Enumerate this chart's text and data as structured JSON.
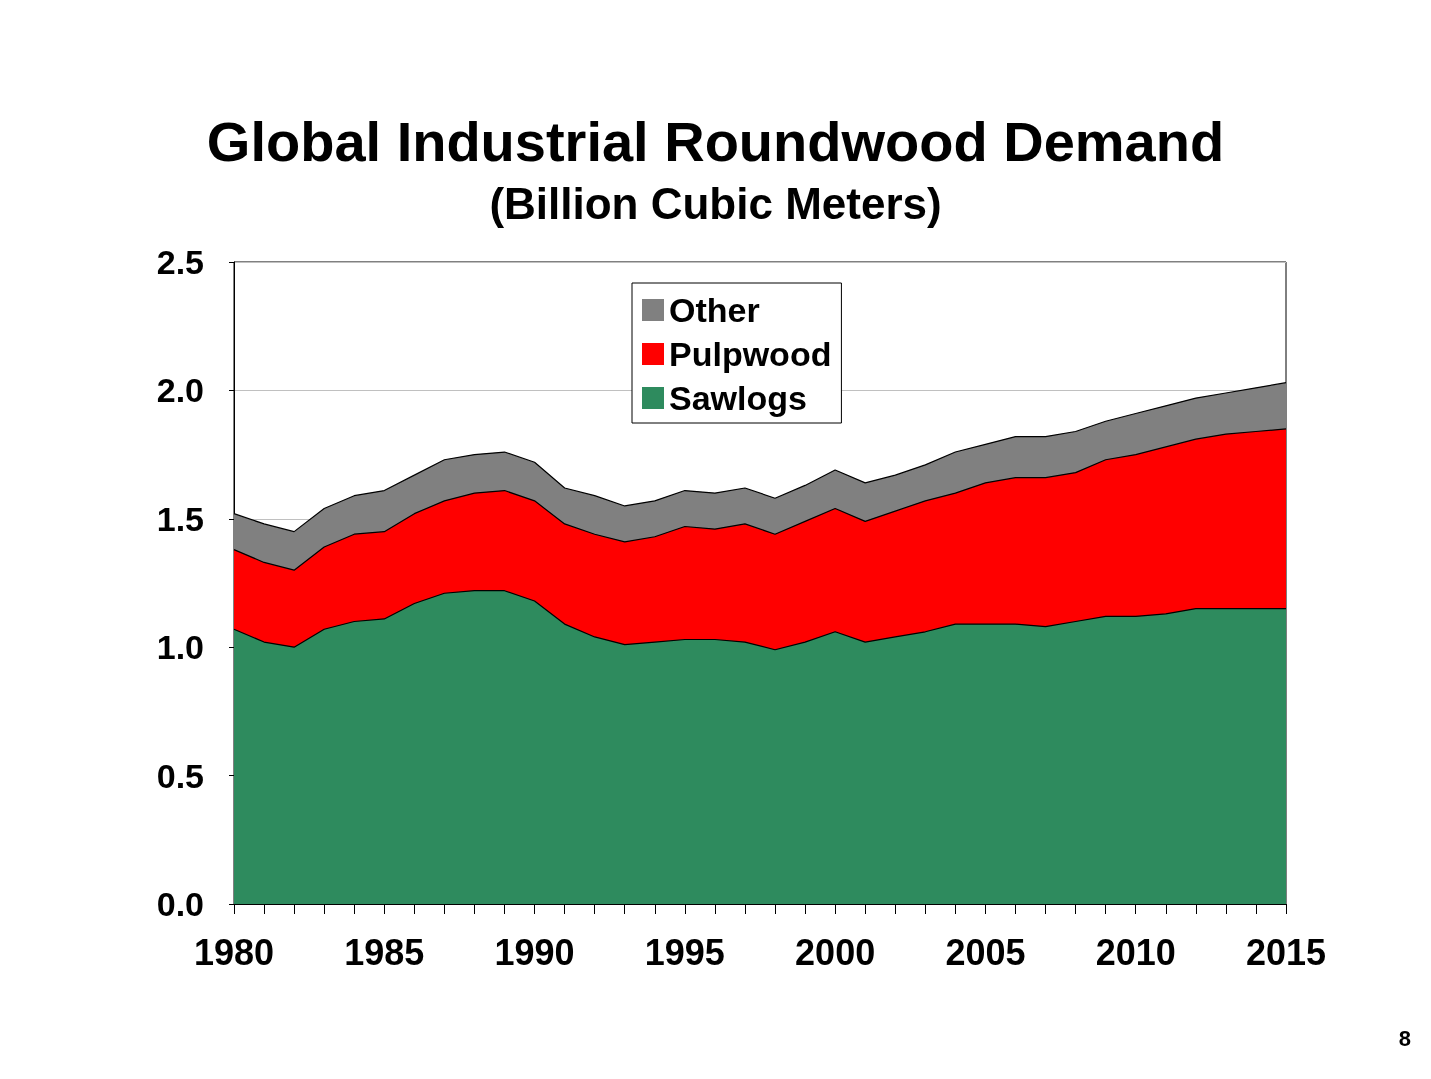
{
  "chart_data": {
    "type": "area",
    "title": "Global Industrial Roundwood Demand",
    "subtitle": "(Billion Cubic Meters)",
    "x": [
      1980,
      1981,
      1982,
      1983,
      1984,
      1985,
      1986,
      1987,
      1988,
      1989,
      1990,
      1991,
      1992,
      1993,
      1994,
      1995,
      1996,
      1997,
      1998,
      1999,
      2000,
      2001,
      2002,
      2003,
      2004,
      2005,
      2006,
      2007,
      2008,
      2009,
      2010,
      2011,
      2012,
      2013,
      2014,
      2015
    ],
    "stacked": true,
    "series": [
      {
        "name": "Sawlogs",
        "color": "#2e8b5e",
        "values": [
          1.07,
          1.02,
          1.0,
          1.07,
          1.1,
          1.11,
          1.17,
          1.21,
          1.22,
          1.22,
          1.18,
          1.09,
          1.04,
          1.01,
          1.02,
          1.03,
          1.03,
          1.02,
          0.99,
          1.02,
          1.06,
          1.02,
          1.04,
          1.06,
          1.09,
          1.09,
          1.09,
          1.08,
          1.1,
          1.12,
          1.12,
          1.13,
          1.15,
          1.15,
          1.15,
          1.15
        ]
      },
      {
        "name": "Pulpwood",
        "color": "#ff0000",
        "values": [
          0.31,
          0.31,
          0.3,
          0.32,
          0.34,
          0.34,
          0.35,
          0.36,
          0.38,
          0.39,
          0.39,
          0.39,
          0.4,
          0.4,
          0.41,
          0.44,
          0.43,
          0.46,
          0.45,
          0.47,
          0.48,
          0.47,
          0.49,
          0.51,
          0.51,
          0.55,
          0.57,
          0.58,
          0.58,
          0.61,
          0.63,
          0.65,
          0.66,
          0.68,
          0.69,
          0.7
        ]
      },
      {
        "name": "Other",
        "color": "#808080",
        "values": [
          0.14,
          0.15,
          0.15,
          0.15,
          0.15,
          0.16,
          0.15,
          0.16,
          0.15,
          0.15,
          0.15,
          0.14,
          0.15,
          0.14,
          0.14,
          0.14,
          0.14,
          0.14,
          0.14,
          0.14,
          0.15,
          0.15,
          0.14,
          0.14,
          0.16,
          0.15,
          0.16,
          0.16,
          0.16,
          0.15,
          0.16,
          0.16,
          0.16,
          0.16,
          0.17,
          0.18
        ]
      }
    ],
    "xlim": [
      1980,
      2015
    ],
    "xticks": [
      1980,
      {
        "value": 1981,
        "label": null
      },
      {
        "value": 1982,
        "label": null
      },
      {
        "value": 1983,
        "label": null
      },
      {
        "value": 1984,
        "label": null
      },
      1985,
      {
        "value": 1986,
        "label": null
      },
      {
        "value": 1987,
        "label": null
      },
      {
        "value": 1988,
        "label": null
      },
      {
        "value": 1989,
        "label": null
      },
      1990,
      {
        "value": 1991,
        "label": null
      },
      {
        "value": 1992,
        "label": null
      },
      {
        "value": 1993,
        "label": null
      },
      {
        "value": 1994,
        "label": null
      },
      1995,
      {
        "value": 1996,
        "label": null
      },
      {
        "value": 1997,
        "label": null
      },
      {
        "value": 1998,
        "label": null
      },
      {
        "value": 1999,
        "label": null
      },
      2000,
      {
        "value": 2001,
        "label": null
      },
      {
        "value": 2002,
        "label": null
      },
      {
        "value": 2003,
        "label": null
      },
      {
        "value": 2004,
        "label": null
      },
      2005,
      {
        "value": 2006,
        "label": null
      },
      {
        "value": 2007,
        "label": null
      },
      {
        "value": 2008,
        "label": null
      },
      {
        "value": 2009,
        "label": null
      },
      2010,
      {
        "value": 2011,
        "label": null
      },
      {
        "value": 2012,
        "label": null
      },
      {
        "value": 2013,
        "label": null
      },
      {
        "value": 2014,
        "label": null
      },
      2015
    ],
    "ylim": [
      0,
      2.5
    ],
    "yticks": [
      {
        "value": 0,
        "label": "0.0"
      },
      {
        "value": 0.5,
        "label": "0.5"
      },
      {
        "value": 1,
        "label": "1.0"
      },
      {
        "value": 1.5,
        "label": "1.5"
      },
      {
        "value": 2,
        "label": "2.0"
      },
      {
        "value": 2.5,
        "label": "2.5"
      }
    ],
    "grid": "y",
    "legend": "top",
    "marker": "none",
    "annotations": [
      "8"
    ]
  }
}
